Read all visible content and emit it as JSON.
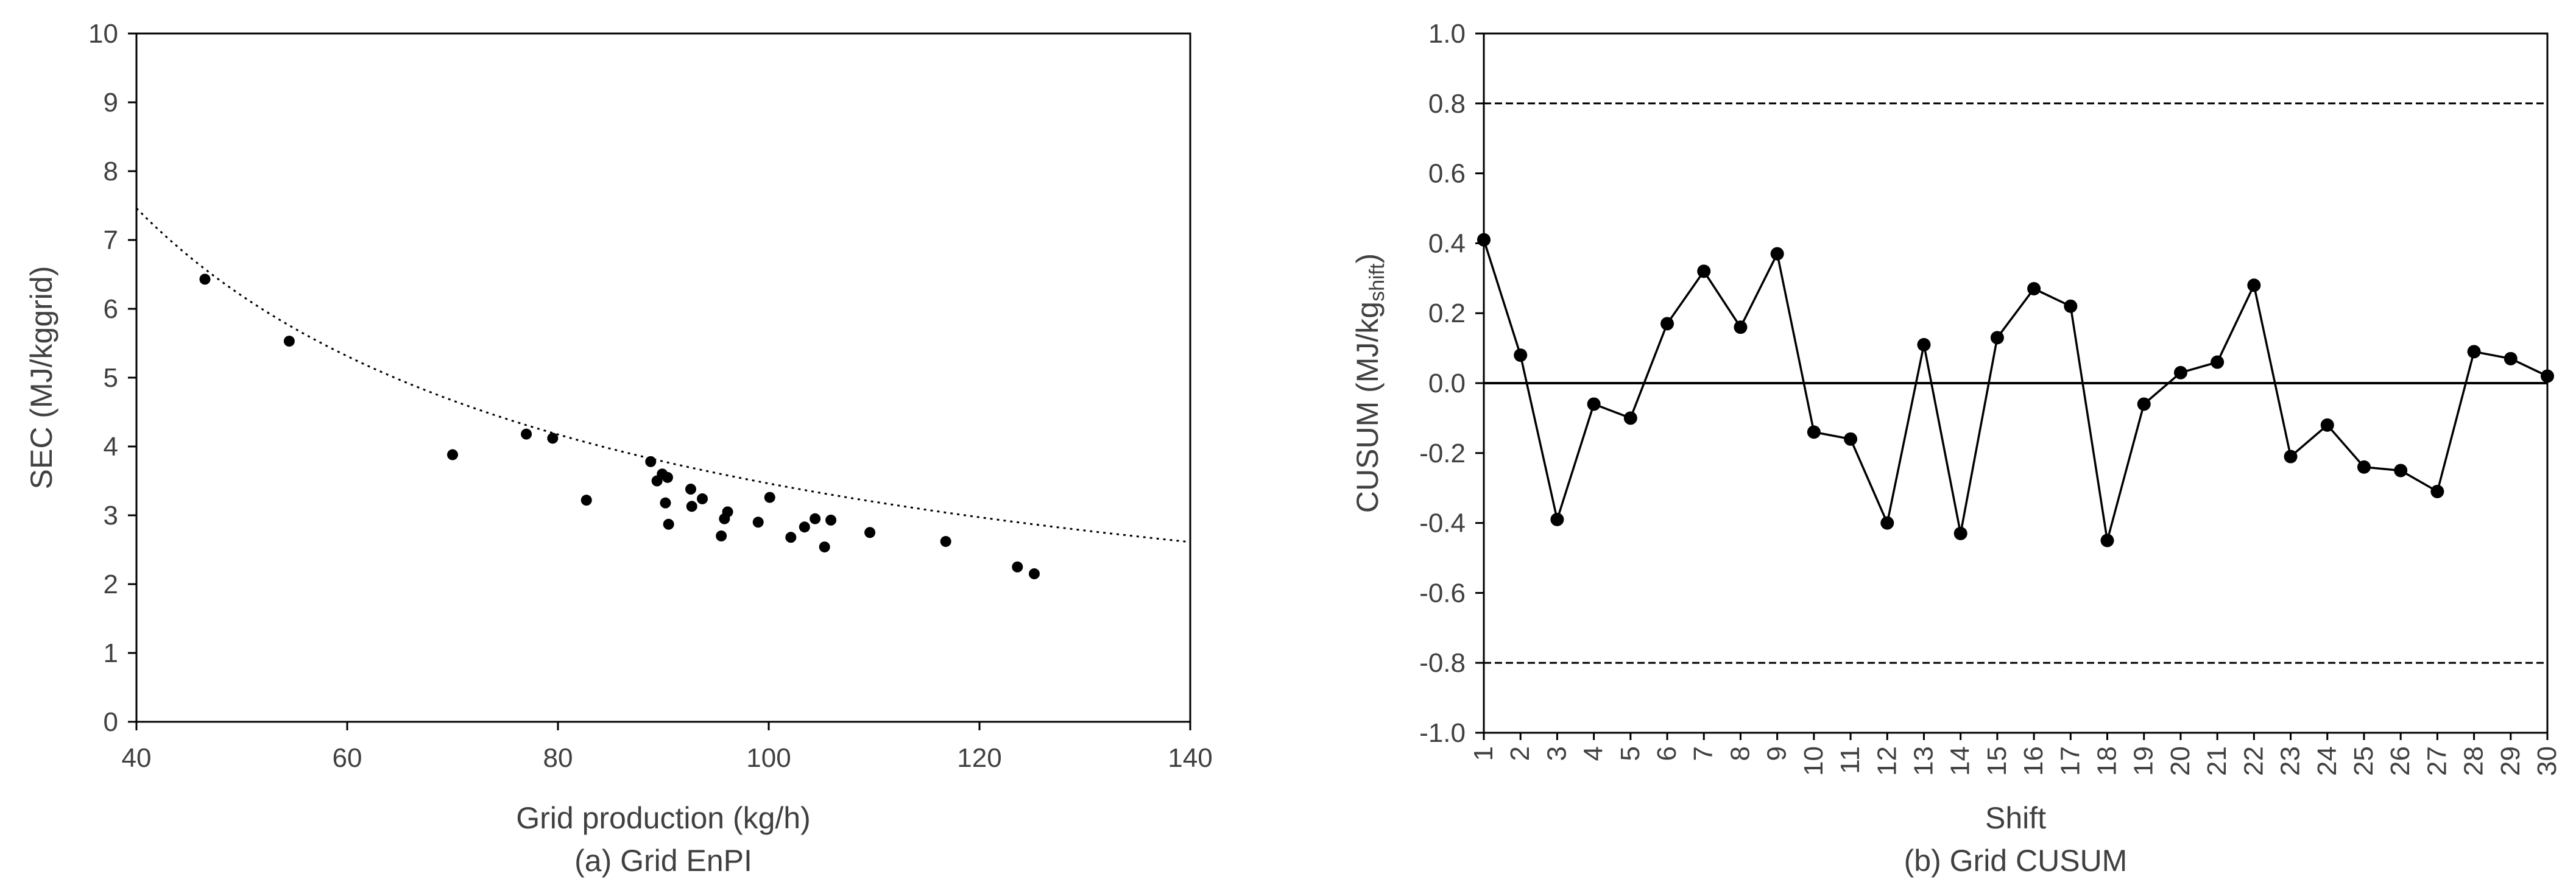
{
  "chart_data": [
    {
      "type": "scatter",
      "caption": "(a) Grid EnPI",
      "xlabel": "Grid production (kg/h)",
      "ylabel": "SEC (MJ/kggrid)",
      "xlim": [
        40,
        140
      ],
      "ylim": [
        0,
        10
      ],
      "xticks": [
        40,
        60,
        80,
        100,
        120,
        140
      ],
      "yticks": [
        0,
        1,
        2,
        3,
        4,
        5,
        6,
        7,
        8,
        9,
        10
      ],
      "grid": false,
      "legend": "none",
      "points": [
        {
          "x": 46.5,
          "y": 6.43
        },
        {
          "x": 54.5,
          "y": 5.53
        },
        {
          "x": 70.0,
          "y": 3.88
        },
        {
          "x": 77.0,
          "y": 4.18
        },
        {
          "x": 79.5,
          "y": 4.12
        },
        {
          "x": 82.7,
          "y": 3.22
        },
        {
          "x": 88.8,
          "y": 3.78
        },
        {
          "x": 89.4,
          "y": 3.5
        },
        {
          "x": 89.9,
          "y": 3.6
        },
        {
          "x": 90.2,
          "y": 3.18
        },
        {
          "x": 90.4,
          "y": 3.55
        },
        {
          "x": 90.5,
          "y": 2.87
        },
        {
          "x": 92.6,
          "y": 3.38
        },
        {
          "x": 92.7,
          "y": 3.13
        },
        {
          "x": 93.7,
          "y": 3.24
        },
        {
          "x": 95.5,
          "y": 2.7
        },
        {
          "x": 95.8,
          "y": 2.95
        },
        {
          "x": 96.1,
          "y": 3.05
        },
        {
          "x": 99.0,
          "y": 2.9
        },
        {
          "x": 100.1,
          "y": 3.26
        },
        {
          "x": 102.1,
          "y": 2.68
        },
        {
          "x": 103.4,
          "y": 2.83
        },
        {
          "x": 104.4,
          "y": 2.95
        },
        {
          "x": 105.3,
          "y": 2.54
        },
        {
          "x": 105.9,
          "y": 2.93
        },
        {
          "x": 109.6,
          "y": 2.75
        },
        {
          "x": 116.8,
          "y": 2.62
        },
        {
          "x": 123.6,
          "y": 2.25
        },
        {
          "x": 125.2,
          "y": 2.15
        }
      ],
      "trendline": {
        "kind": "power",
        "style": "dotted",
        "a": 164.2,
        "b": -0.838
      }
    },
    {
      "type": "line",
      "caption": "(b) Grid CUSUM",
      "xlabel": "Shift",
      "ylabel_main": "CUSUM (MJ/kg",
      "ylabel_sub": "shift",
      "ylabel_end": ")",
      "ylim": [
        -1.0,
        1.0
      ],
      "yticks": [
        "-1.0",
        "-0.8",
        "-0.6",
        "-0.4",
        "-0.2",
        "0.0",
        "0.2",
        "0.4",
        "0.6",
        "0.8",
        "1.0"
      ],
      "grid": false,
      "legend": "none",
      "x": [
        1,
        2,
        3,
        4,
        5,
        6,
        7,
        8,
        9,
        10,
        11,
        12,
        13,
        14,
        15,
        16,
        17,
        18,
        19,
        20,
        21,
        22,
        23,
        24,
        25,
        26,
        27,
        28,
        29,
        30
      ],
      "values": [
        0.41,
        0.08,
        -0.39,
        -0.06,
        -0.1,
        0.17,
        0.32,
        0.16,
        0.37,
        -0.14,
        -0.16,
        -0.4,
        0.11,
        -0.43,
        0.13,
        0.27,
        0.22,
        -0.45,
        -0.06,
        0.03,
        0.06,
        0.28,
        -0.21,
        -0.12,
        -0.24,
        -0.25,
        -0.31,
        0.09,
        0.07,
        0.02
      ],
      "control_limits": [
        0.8,
        -0.8
      ],
      "center_line": 0.0
    }
  ]
}
